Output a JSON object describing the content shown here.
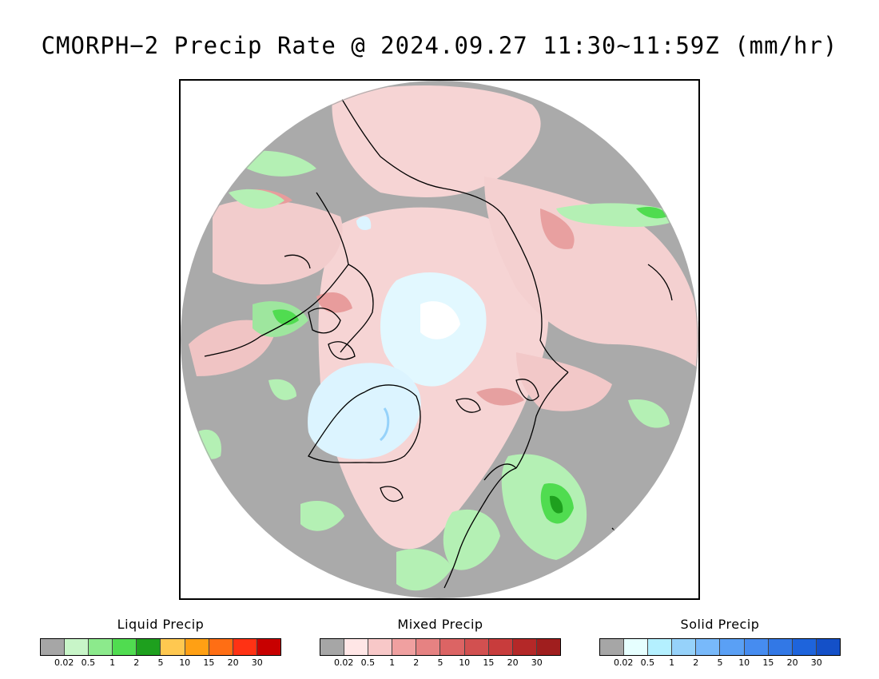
{
  "title": "CMORPH−2 Precip Rate @ 2024.09.27 11:30~11:59Z (mm/hr)",
  "map": {
    "projection": "north-polar-stereographic",
    "background_color": "#aaaaaa",
    "colors": {
      "no_precip": "#aaaaaa",
      "light_rain": "#b4f0b4",
      "moderate_rain": "#50dc50",
      "heavy_rain": "#1ea01e",
      "light_mixed": "#f8d0d0",
      "moderate_mixed": "#e89090",
      "light_snow": "#dff8ff",
      "coastline": "#000000"
    }
  },
  "legends": [
    {
      "title": "Liquid Precip",
      "colors": [
        "#a6a6a6",
        "#c8f5c8",
        "#8cea8c",
        "#50dc50",
        "#1ea01e",
        "#ffc850",
        "#ffa014",
        "#ff6e14",
        "#ff3214",
        "#c80000"
      ],
      "ticks": [
        "0.02",
        "0.5",
        "1",
        "2",
        "5",
        "10",
        "15",
        "20",
        "30"
      ]
    },
    {
      "title": "Mixed Precip",
      "colors": [
        "#a6a6a6",
        "#ffe6e6",
        "#f8c8c8",
        "#f0a0a0",
        "#e68282",
        "#dc6464",
        "#d25050",
        "#c83c3c",
        "#b42828",
        "#a01e1e"
      ],
      "ticks": [
        "0.02",
        "0.5",
        "1",
        "2",
        "5",
        "10",
        "15",
        "20",
        "30"
      ]
    },
    {
      "title": "Solid Precip",
      "colors": [
        "#a6a6a6",
        "#e6ffff",
        "#b4f0ff",
        "#96d2fa",
        "#78b9fa",
        "#5aa0f5",
        "#468cf0",
        "#3278e6",
        "#1e64dc",
        "#1450c8"
      ],
      "ticks": [
        "0.02",
        "0.5",
        "1",
        "2",
        "5",
        "10",
        "15",
        "20",
        "30"
      ]
    }
  ]
}
